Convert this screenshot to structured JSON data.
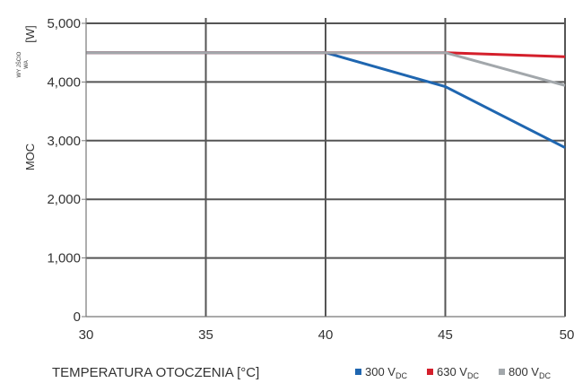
{
  "chart_data": {
    "type": "line",
    "title": "",
    "xlabel": "TEMPERATURA OTOCZENIA [°C]",
    "ylabel": {
      "main": "MOC",
      "small_top": "WY JŚCIO",
      "small_bottom": "WA",
      "unit": "[W]"
    },
    "xlim": [
      30,
      50
    ],
    "ylim": [
      0,
      5000
    ],
    "x_ticks": [
      30,
      35,
      40,
      45,
      50
    ],
    "x_tick_labels": [
      "30",
      "35",
      "40",
      "45",
      "50"
    ],
    "y_ticks": [
      0,
      1000,
      2000,
      3000,
      4000,
      5000
    ],
    "y_tick_labels": [
      "0",
      "1,000",
      "2,000",
      "3,000",
      "4,000",
      "5,000"
    ],
    "grid": true,
    "legend_position": "bottom-right",
    "series": [
      {
        "name": "300 V",
        "subscript": "DC",
        "color": "#1f66b0",
        "x": [
          30,
          40,
          45,
          50
        ],
        "y": [
          4500,
          4500,
          3920,
          2880
        ]
      },
      {
        "name": "630 V",
        "subscript": "DC",
        "color": "#d41f2b",
        "x": [
          30,
          45,
          50
        ],
        "y": [
          4500,
          4500,
          4430
        ]
      },
      {
        "name": "800 V",
        "subscript": "DC",
        "color": "#a2a7ab",
        "x": [
          30,
          45,
          50
        ],
        "y": [
          4500,
          4500,
          3940
        ]
      }
    ]
  }
}
